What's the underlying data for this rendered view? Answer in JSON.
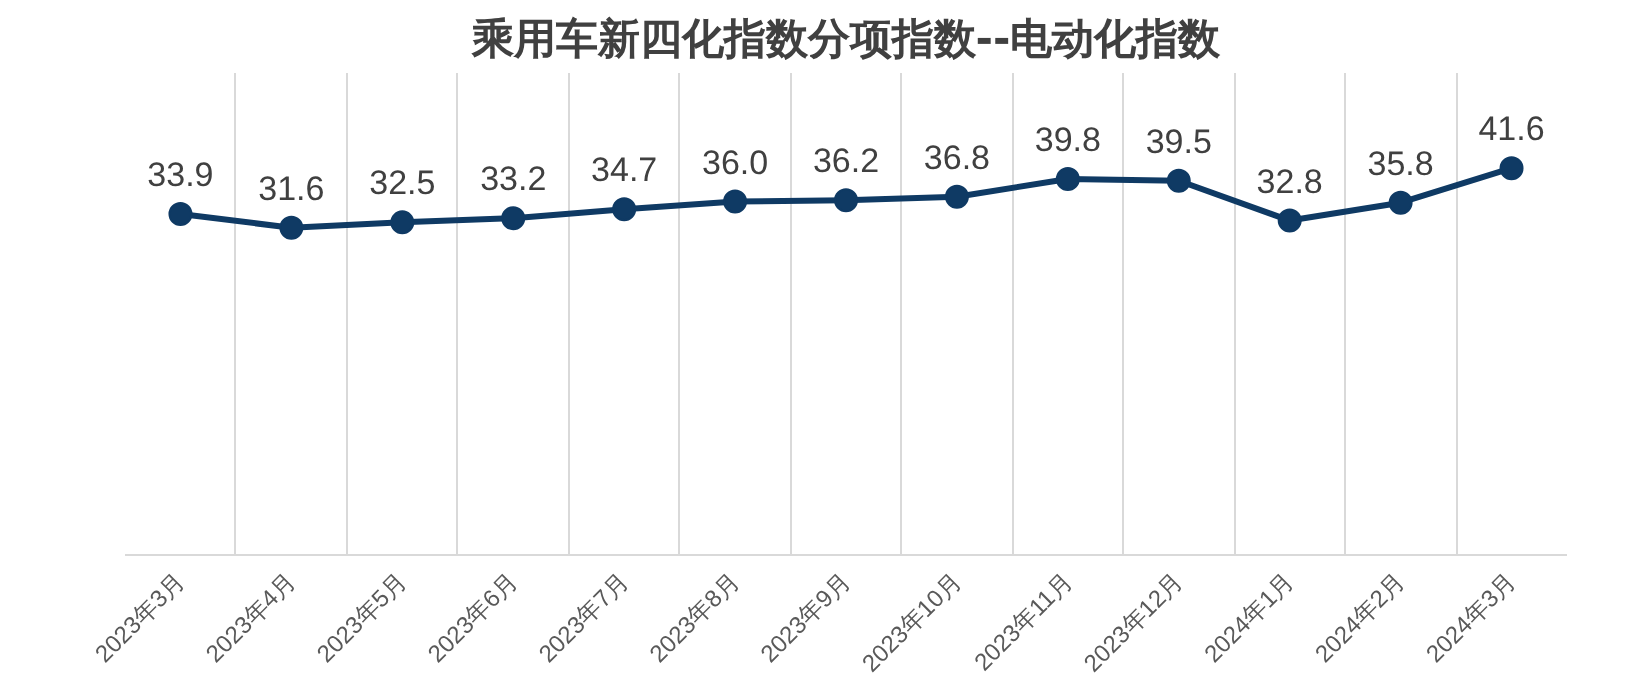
{
  "chart_data": {
    "type": "line",
    "title": "乘用车新四化指数分项指数--电动化指数",
    "categories": [
      "2023年3月",
      "2023年4月",
      "2023年5月",
      "2023年6月",
      "2023年7月",
      "2023年8月",
      "2023年9月",
      "2023年10月",
      "2023年11月",
      "2023年12月",
      "2024年1月",
      "2024年2月",
      "2024年3月"
    ],
    "series": [
      {
        "color": "#0f3a64",
        "values": [
          33.9,
          31.6,
          32.5,
          33.2,
          34.7,
          36.0,
          36.2,
          36.8,
          39.8,
          39.5,
          32.8,
          35.8,
          41.6
        ],
        "value_labels": [
          "33.9",
          "31.6",
          "32.5",
          "33.2",
          "34.7",
          "36.0",
          "36.2",
          "36.8",
          "39.8",
          "39.5",
          "32.8",
          "35.8",
          "41.6"
        ]
      }
    ],
    "grid": "x",
    "marker": "circle",
    "line_style": "solid"
  }
}
